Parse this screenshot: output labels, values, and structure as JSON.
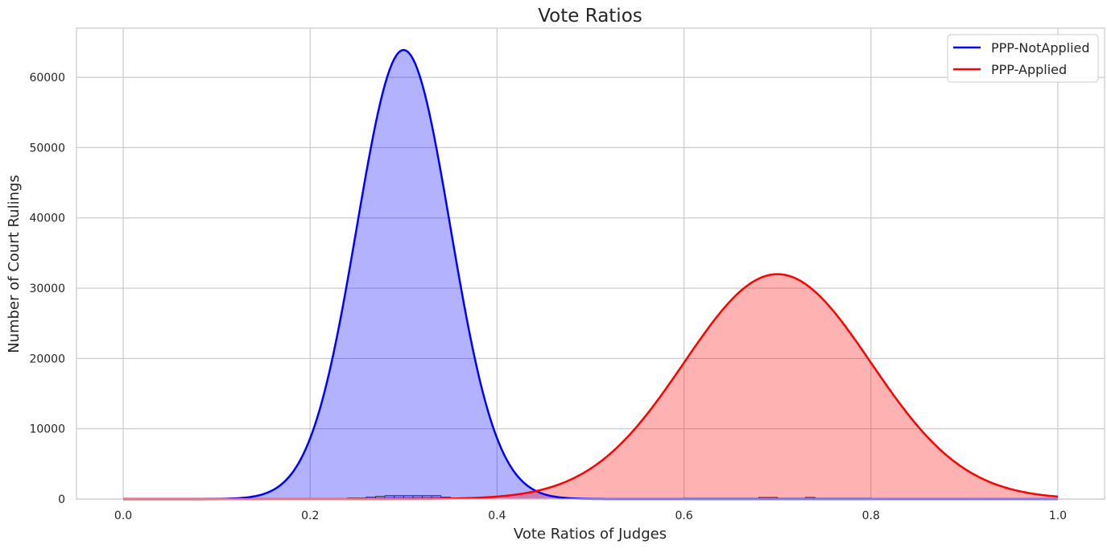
{
  "chart_data": {
    "type": "area",
    "title": "Vote Ratios",
    "xlabel": "Vote Ratios of Judges",
    "ylabel": "Number of Court Rulings",
    "xlim": [
      -0.05,
      1.05
    ],
    "ylim": [
      0,
      67000
    ],
    "x_ticks": [
      0.0,
      0.2,
      0.4,
      0.6,
      0.8,
      1.0
    ],
    "x_tick_labels": [
      "0.0",
      "0.2",
      "0.4",
      "0.6",
      "0.8",
      "1.0"
    ],
    "y_ticks": [
      0,
      10000,
      20000,
      30000,
      40000,
      50000,
      60000
    ],
    "y_tick_labels": [
      "0",
      "10000",
      "20000",
      "30000",
      "40000",
      "50000",
      "60000"
    ],
    "grid": true,
    "legend_position": "top-right",
    "series": [
      {
        "name": "PPP-NotApplied",
        "color": "#0000ff",
        "fill_color": "#b2b2ff",
        "x_range": [
          0.0,
          1.0
        ],
        "peak_x": 0.3,
        "peak_y": 63900,
        "std": 0.05,
        "points": [
          [
            0.15,
            700
          ],
          [
            0.2,
            8600
          ],
          [
            0.25,
            38800
          ],
          [
            0.3,
            63900
          ],
          [
            0.35,
            38800
          ],
          [
            0.4,
            8600
          ],
          [
            0.45,
            700
          ]
        ],
        "histogram_bins": [
          {
            "x0": 0.22,
            "x1": 0.24,
            "value": 50
          },
          {
            "x0": 0.24,
            "x1": 0.26,
            "value": 150
          },
          {
            "x0": 0.26,
            "x1": 0.27,
            "value": 300
          },
          {
            "x0": 0.27,
            "x1": 0.28,
            "value": 400
          },
          {
            "x0": 0.28,
            "x1": 0.29,
            "value": 500
          },
          {
            "x0": 0.29,
            "x1": 0.3,
            "value": 500
          },
          {
            "x0": 0.3,
            "x1": 0.31,
            "value": 500
          },
          {
            "x0": 0.31,
            "x1": 0.32,
            "value": 500
          },
          {
            "x0": 0.32,
            "x1": 0.33,
            "value": 500
          },
          {
            "x0": 0.33,
            "x1": 0.34,
            "value": 500
          },
          {
            "x0": 0.34,
            "x1": 0.35,
            "value": 300
          },
          {
            "x0": 0.35,
            "x1": 0.36,
            "value": 150
          }
        ]
      },
      {
        "name": "PPP-Applied",
        "color": "#ff0000",
        "fill_color": "#ffb2b2",
        "x_range": [
          0.0,
          1.0
        ],
        "peak_x": 0.7,
        "peak_y": 32000,
        "std": 0.1,
        "points": [
          [
            0.4,
            350
          ],
          [
            0.5,
            4300
          ],
          [
            0.6,
            19400
          ],
          [
            0.7,
            32000
          ],
          [
            0.8,
            19400
          ],
          [
            0.9,
            4300
          ],
          [
            1.0,
            350
          ]
        ],
        "histogram_bins": [
          {
            "x0": 0.6,
            "x1": 0.68,
            "value": 100
          },
          {
            "x0": 0.68,
            "x1": 0.7,
            "value": 250
          },
          {
            "x0": 0.7,
            "x1": 0.73,
            "value": 100
          },
          {
            "x0": 0.73,
            "x1": 0.74,
            "value": 250
          },
          {
            "x0": 0.74,
            "x1": 0.8,
            "value": 100
          }
        ]
      }
    ]
  }
}
